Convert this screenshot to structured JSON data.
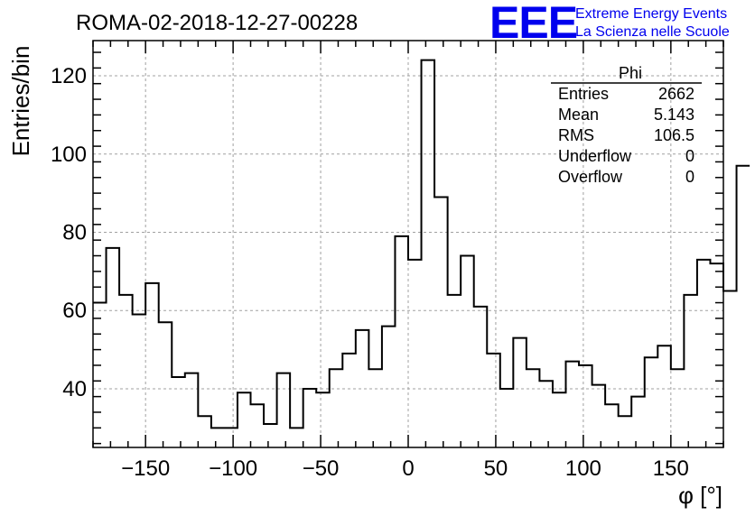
{
  "chart_data": {
    "type": "histogram",
    "title": "ROMA-02-2018-12-27-00228",
    "xlabel": "φ [°]",
    "ylabel": "Entries/bin",
    "xlim": [
      -180,
      180
    ],
    "ylim": [
      25,
      129
    ],
    "xticks": [
      -150,
      -100,
      -50,
      0,
      50,
      100,
      150
    ],
    "xtick_labels": [
      "−150",
      "−100",
      "−50",
      "0",
      "50",
      "100",
      "150"
    ],
    "yticks": [
      40,
      60,
      80,
      100,
      120
    ],
    "ytick_labels": [
      "40",
      "60",
      "80",
      "100",
      "120"
    ],
    "grid": true,
    "bin_width": 7.5,
    "bin_edges_start": -180,
    "values": [
      62,
      76,
      64,
      59,
      67,
      57,
      43,
      44,
      33,
      30,
      30,
      39,
      36,
      31,
      44,
      30,
      40,
      39,
      45,
      49,
      55,
      45,
      56,
      79,
      73,
      124,
      89,
      64,
      74,
      61,
      49,
      40,
      53,
      45,
      42,
      39,
      47,
      46,
      41,
      36,
      33,
      38,
      48,
      51,
      45,
      64,
      73,
      72,
      65,
      97
    ]
  },
  "stats": {
    "name": "Phi",
    "rows": [
      {
        "label": "Entries",
        "value": "2662"
      },
      {
        "label": "Mean",
        "value": "5.143"
      },
      {
        "label": "RMS",
        "value": "106.5"
      },
      {
        "label": "Underflow",
        "value": "0"
      },
      {
        "label": "Overflow",
        "value": "0"
      }
    ]
  },
  "logo": {
    "mark": "EEE",
    "line1": "Extreme Energy Events",
    "line2": "La Scienza nelle Scuole",
    "color": "#0000ee"
  }
}
